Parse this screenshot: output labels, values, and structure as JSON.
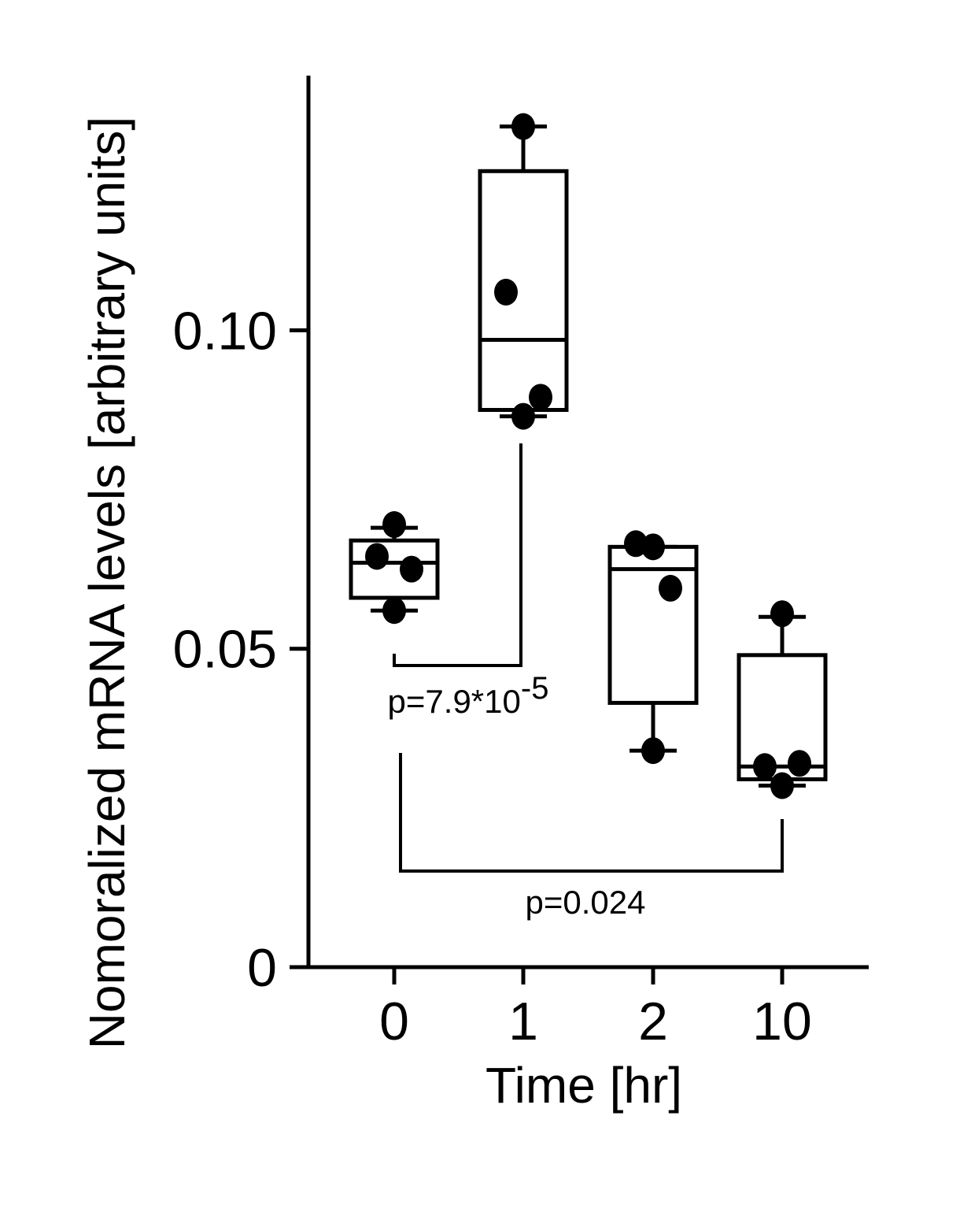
{
  "chart_data": {
    "type": "box",
    "title": "",
    "xlabel": "Time [hr]",
    "ylabel": "Nomoralized mRNA levels  [arbitrary units]",
    "ylim": [
      0,
      0.14
    ],
    "yticks": [
      {
        "value": 0,
        "label": "0"
      },
      {
        "value": 0.05,
        "label": "0.05"
      },
      {
        "value": 0.1,
        "label": "0.10"
      }
    ],
    "categories": [
      "0",
      "1",
      "2",
      "10"
    ],
    "boxes": [
      {
        "category": "0",
        "min": 0.056,
        "q1": 0.058,
        "median": 0.0635,
        "q3": 0.067,
        "max": 0.069,
        "points": [
          0.0695,
          0.0645,
          0.0625,
          0.056
        ]
      },
      {
        "category": "1",
        "min": 0.0865,
        "q1": 0.0875,
        "median": 0.0985,
        "q3": 0.125,
        "max": 0.132,
        "points": [
          0.132,
          0.106,
          0.0895,
          0.0865
        ]
      },
      {
        "category": "2",
        "min": 0.034,
        "q1": 0.0415,
        "median": 0.0625,
        "q3": 0.066,
        "max": 0.066,
        "points": [
          0.066,
          0.0665,
          0.0595,
          0.034
        ]
      },
      {
        "category": "10",
        "min": 0.0285,
        "q1": 0.0295,
        "median": 0.0315,
        "q3": 0.049,
        "max": 0.055,
        "points": [
          0.0555,
          0.0315,
          0.032,
          0.0285
        ]
      }
    ],
    "annotations": [
      {
        "from": "0",
        "to": "1",
        "text": "p=7.9*10",
        "exponent": "-5"
      },
      {
        "from": "0",
        "to": "10",
        "text": "p=0.024",
        "exponent": ""
      }
    ]
  }
}
